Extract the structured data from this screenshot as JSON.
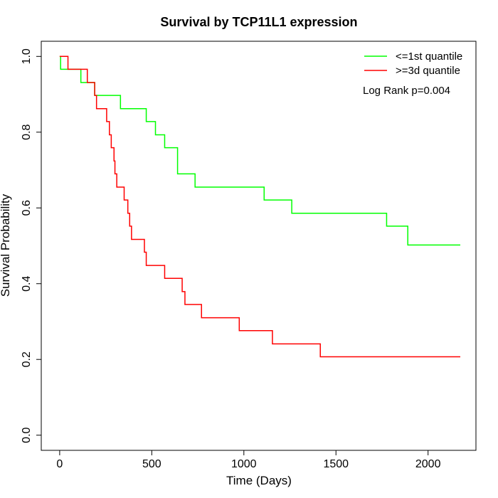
{
  "chart_data": {
    "type": "line",
    "title": "Survival by TCP11L1 expression",
    "xlabel": "Time (Days)",
    "ylabel": "Survival Probability",
    "xlim": [
      -100,
      2260
    ],
    "ylim": [
      -0.04,
      1.04
    ],
    "x_ticks": [
      0,
      500,
      1000,
      1500,
      2000
    ],
    "y_ticks": [
      0.0,
      0.2,
      0.4,
      0.6,
      0.8,
      1.0
    ],
    "x_tick_labels": [
      "0",
      "500",
      "1000",
      "1500",
      "2000"
    ],
    "y_tick_labels": [
      "0.0",
      "0.2",
      "0.4",
      "0.6",
      "0.8",
      "1.0"
    ],
    "grid": false,
    "legend_position": "top-right",
    "annotation": "Log Rank p=0.004",
    "series": [
      {
        "name": "<=1st quantile",
        "color": "#00ff00",
        "step": true,
        "x": [
          0,
          5,
          115,
          190,
          330,
          470,
          520,
          570,
          640,
          735,
          1110,
          1260,
          1775,
          1890,
          2175
        ],
        "y": [
          1.0,
          0.966,
          0.931,
          0.897,
          0.862,
          0.828,
          0.793,
          0.759,
          0.69,
          0.655,
          0.621,
          0.586,
          0.552,
          0.502,
          0.502
        ]
      },
      {
        "name": ">=3d quantile",
        "color": "#ff0000",
        "step": true,
        "x": [
          0,
          45,
          150,
          190,
          200,
          255,
          270,
          280,
          295,
          300,
          310,
          350,
          370,
          380,
          390,
          400,
          460,
          470,
          570,
          665,
          680,
          770,
          975,
          1155,
          1415,
          2175
        ],
        "y": [
          1.0,
          0.966,
          0.931,
          0.897,
          0.862,
          0.828,
          0.793,
          0.759,
          0.724,
          0.69,
          0.655,
          0.621,
          0.586,
          0.552,
          0.517,
          0.517,
          0.483,
          0.448,
          0.414,
          0.379,
          0.345,
          0.31,
          0.276,
          0.241,
          0.207,
          0.207
        ]
      }
    ]
  }
}
